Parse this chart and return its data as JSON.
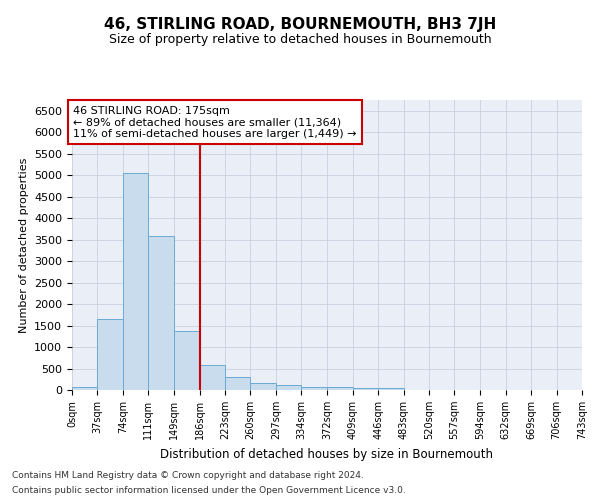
{
  "title": "46, STIRLING ROAD, BOURNEMOUTH, BH3 7JH",
  "subtitle": "Size of property relative to detached houses in Bournemouth",
  "xlabel": "Distribution of detached houses by size in Bournemouth",
  "ylabel": "Number of detached properties",
  "footer_line1": "Contains HM Land Registry data © Crown copyright and database right 2024.",
  "footer_line2": "Contains public sector information licensed under the Open Government Licence v3.0.",
  "bin_labels": [
    "0sqm",
    "37sqm",
    "74sqm",
    "111sqm",
    "149sqm",
    "186sqm",
    "223sqm",
    "260sqm",
    "297sqm",
    "334sqm",
    "372sqm",
    "409sqm",
    "446sqm",
    "483sqm",
    "520sqm",
    "557sqm",
    "594sqm",
    "632sqm",
    "669sqm",
    "706sqm",
    "743sqm"
  ],
  "bin_edges": [
    0,
    37,
    74,
    111,
    149,
    186,
    223,
    260,
    297,
    334,
    372,
    409,
    446,
    483,
    520,
    557,
    594,
    632,
    669,
    706,
    743
  ],
  "bar_heights": [
    60,
    1650,
    5050,
    3580,
    1380,
    590,
    305,
    160,
    120,
    80,
    60,
    45,
    35,
    0,
    0,
    0,
    0,
    0,
    0,
    0
  ],
  "bar_color": "#c9dcee",
  "bar_edge_color": "#6aaad4",
  "grid_color": "#c8d0de",
  "vline_x": 186,
  "vline_color": "#cc0000",
  "annotation_line1": "46 STIRLING ROAD: 175sqm",
  "annotation_line2": "← 89% of detached houses are smaller (11,364)",
  "annotation_line3": "11% of semi-detached houses are larger (1,449) →",
  "annotation_box_facecolor": "#ffffff",
  "annotation_box_edgecolor": "#cc0000",
  "ylim": [
    0,
    6750
  ],
  "yticks": [
    0,
    500,
    1000,
    1500,
    2000,
    2500,
    3000,
    3500,
    4000,
    4500,
    5000,
    5500,
    6000,
    6500
  ],
  "bg_color": "#eaeff7",
  "title_fontsize": 11,
  "subtitle_fontsize": 9
}
